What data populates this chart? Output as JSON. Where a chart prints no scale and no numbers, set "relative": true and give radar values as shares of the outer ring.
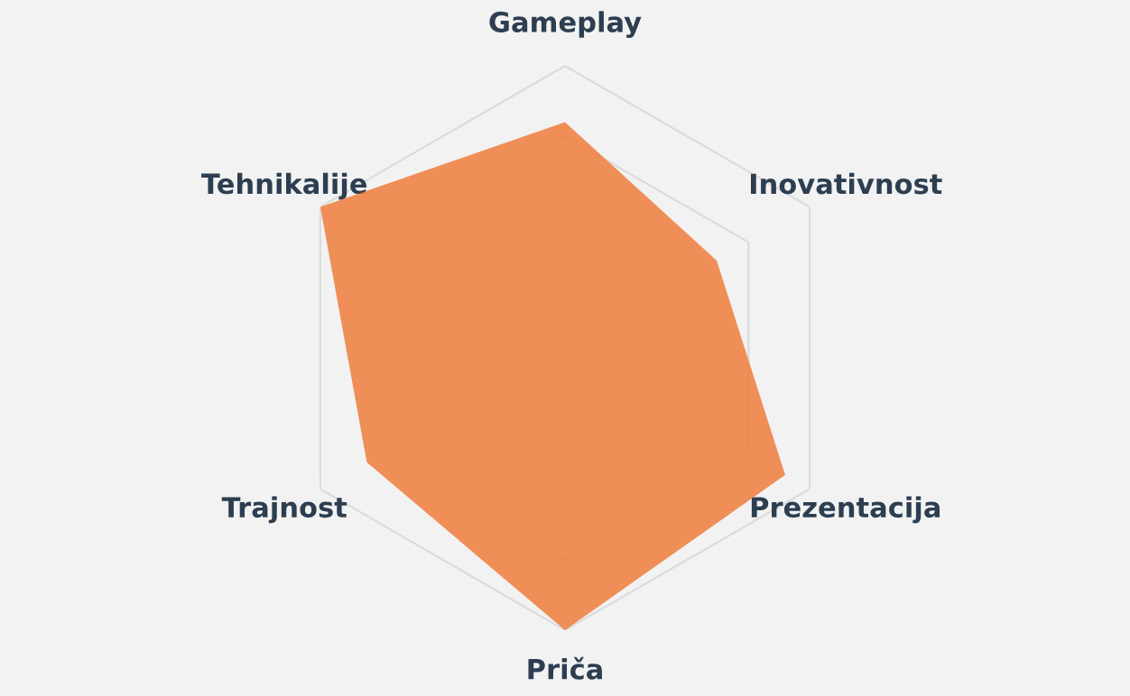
{
  "chart_data": {
    "type": "radar",
    "relative": true,
    "grid": true,
    "categories": [
      "Gameplay",
      "Inovativnost",
      "Prezentacija",
      "Priča",
      "Trajnost",
      "Tehnikalije"
    ],
    "series": [
      {
        "color": "#ef7d3b",
        "values": [
          0.8,
          0.62,
          0.9,
          1.0,
          0.81,
          1.0
        ]
      }
    ]
  }
}
